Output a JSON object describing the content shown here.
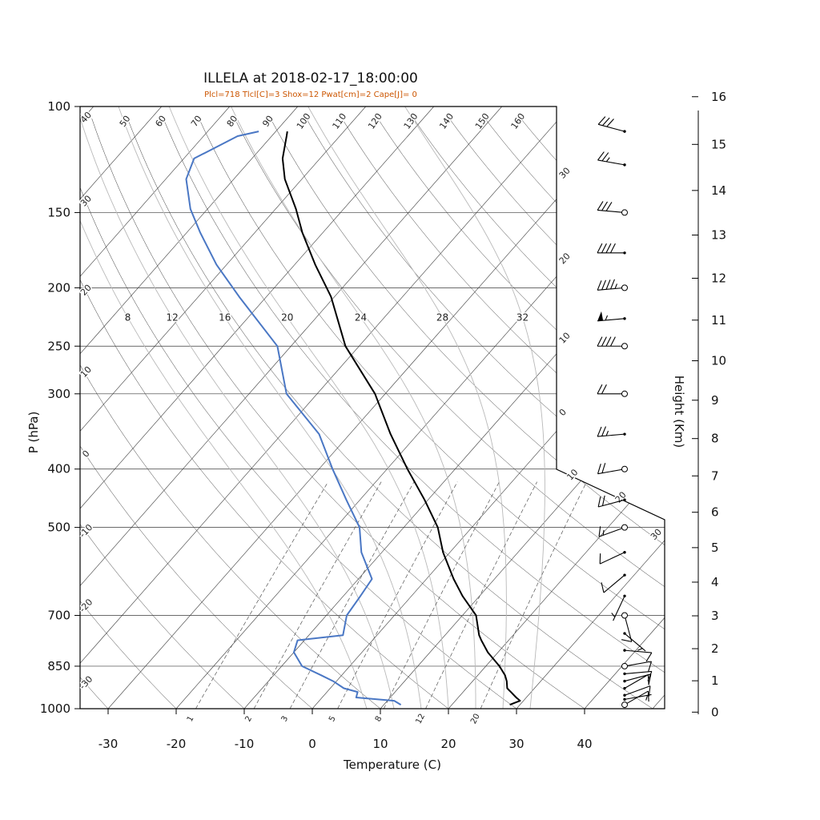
{
  "chart_data": {
    "type": "line",
    "subtype": "skew-t-log-p-sounding",
    "title": "ILLELA at 2018-02-17_18:00:00",
    "station": "ILLELA",
    "valid_time": "2018-02-17_18:00:00",
    "subtitle": "Plcl=718 Tlcl[C]=3 Shox=12 Pwat[cm]=2 Cape[J]= 0",
    "indices": {
      "Plcl": 718,
      "Tlcl_C": 3,
      "Shox": 12,
      "Pwat_cm": 2,
      "Cape_J": 0
    },
    "xlabel": "Temperature (C)",
    "ylabel": "P (hPa)",
    "y2label": "Height (Km)",
    "pressure_ticks": [
      100,
      150,
      200,
      250,
      300,
      400,
      500,
      700,
      850,
      1000
    ],
    "temperature_ticks": [
      -30,
      -20,
      -10,
      0,
      10,
      20,
      30,
      40
    ],
    "height_ticks_km": [
      0,
      1,
      2,
      3,
      4,
      5,
      6,
      7,
      8,
      9,
      10,
      11,
      12,
      13,
      14,
      15,
      16
    ],
    "pressure_range_hpa": [
      100,
      1000
    ],
    "isotherm_step_c": 10,
    "dry_adiabat_values_c": [
      -30,
      -20,
      -10,
      0,
      10,
      20,
      30,
      40,
      50,
      60,
      70,
      80,
      90,
      100,
      110,
      120,
      130,
      140,
      150,
      160
    ],
    "dry_adiabat_top_labels": [
      "50",
      "60",
      "70",
      "80",
      "90",
      "100",
      "110",
      "120",
      "130",
      "140",
      "150",
      "160"
    ],
    "dry_adiabat_left_labels": [
      "40",
      "30",
      "20",
      "10",
      "0",
      "-10",
      "-20",
      "-30"
    ],
    "right_edge_labels": [
      {
        "text": "30",
        "p": 132
      },
      {
        "text": "20",
        "p": 183
      },
      {
        "text": "10",
        "p": 248
      },
      {
        "text": "0",
        "p": 327
      }
    ],
    "lower_right_isotherm_labels": [
      {
        "text": "10",
        "t": 10
      },
      {
        "text": "20",
        "t": 20
      },
      {
        "text": "30",
        "t": 30
      }
    ],
    "moist_adiabat_values_c": [
      8,
      12,
      16,
      20,
      24,
      28,
      32
    ],
    "mixing_ratio_values_gkg": [
      1,
      2,
      3,
      5,
      8,
      12,
      20
    ],
    "sounding": {
      "pressure_hpa": [
        985,
        970,
        958,
        938,
        925,
        900,
        880,
        850,
        806,
        770,
        755,
        700,
        650,
        609,
        550,
        500,
        450,
        400,
        350,
        300,
        250,
        207,
        183,
        162,
        148,
        132,
        122,
        112,
        110
      ],
      "temperature_c": [
        28.5,
        29.5,
        28.5,
        27,
        26,
        25,
        24,
        22,
        18.5,
        16,
        15,
        12,
        7.5,
        4,
        -1,
        -5,
        -10.5,
        -17,
        -24,
        -31.5,
        -42,
        -50.5,
        -57,
        -63,
        -67,
        -72.5,
        -75.5,
        -77.8,
        -78.3
      ],
      "dewpoint_c": [
        12.5,
        11,
        5,
        4.5,
        2,
        -0.5,
        -3,
        -7,
        -10,
        -11,
        -5,
        -7,
        -7.5,
        -8,
        -13,
        -16.5,
        -22,
        -28,
        -34.5,
        -44.5,
        -52,
        -64,
        -71.5,
        -78,
        -82.5,
        -87,
        -88.5,
        -85,
        -82.5
      ]
    },
    "winds": [
      {
        "p": 985,
        "speed_kt": 8,
        "dir_deg": 60,
        "marker": "circle"
      },
      {
        "p": 965,
        "speed_kt": 5,
        "dir_deg": 80,
        "marker": "dot"
      },
      {
        "p": 950,
        "speed_kt": 10,
        "dir_deg": 70,
        "marker": "dot"
      },
      {
        "p": 925,
        "speed_kt": 12,
        "dir_deg": 60,
        "marker": "dot"
      },
      {
        "p": 900,
        "speed_kt": 10,
        "dir_deg": 75,
        "marker": "dot"
      },
      {
        "p": 875,
        "speed_kt": 8,
        "dir_deg": 85,
        "marker": "dot"
      },
      {
        "p": 850,
        "speed_kt": 10,
        "dir_deg": 80,
        "marker": "circle"
      },
      {
        "p": 800,
        "speed_kt": 8,
        "dir_deg": 95,
        "marker": "dot"
      },
      {
        "p": 750,
        "speed_kt": 5,
        "dir_deg": 130,
        "marker": "dot"
      },
      {
        "p": 700,
        "speed_kt": 8,
        "dir_deg": 165,
        "marker": "circle"
      },
      {
        "p": 650,
        "speed_kt": 5,
        "dir_deg": 205,
        "marker": "dot"
      },
      {
        "p": 600,
        "speed_kt": 8,
        "dir_deg": 230,
        "marker": "dot"
      },
      {
        "p": 550,
        "speed_kt": 10,
        "dir_deg": 245,
        "marker": "dot"
      },
      {
        "p": 500,
        "speed_kt": 15,
        "dir_deg": 250,
        "marker": "circle"
      },
      {
        "p": 450,
        "speed_kt": 18,
        "dir_deg": 255,
        "marker": "dot"
      },
      {
        "p": 400,
        "speed_kt": 20,
        "dir_deg": 260,
        "marker": "circle"
      },
      {
        "p": 350,
        "speed_kt": 25,
        "dir_deg": 265,
        "marker": "dot"
      },
      {
        "p": 300,
        "speed_kt": 20,
        "dir_deg": 270,
        "marker": "circle"
      },
      {
        "p": 250,
        "speed_kt": 40,
        "dir_deg": 270,
        "marker": "circle"
      },
      {
        "p": 225,
        "speed_kt": 55,
        "dir_deg": 265,
        "marker": "dot"
      },
      {
        "p": 200,
        "speed_kt": 45,
        "dir_deg": 265,
        "marker": "circle"
      },
      {
        "p": 175,
        "speed_k t": 40,
        "dir_deg": 270,
        "marker": "dot"
      },
      {
        "p": 150,
        "speed_kt": 30,
        "dir_deg": 275,
        "marker": "circle"
      },
      {
        "p": 125,
        "speed_kt": 25,
        "dir_deg": 280,
        "marker": "dot"
      },
      {
        "p": 110,
        "speed_kt": 30,
        "dir_deg": 285,
        "marker": "dot"
      }
    ],
    "colors": {
      "temperature_curve": "#000000",
      "dewpoint_curve": "#4a77c4",
      "subtitle": "#cc5500",
      "moist_adiabat": "#b9b9b9",
      "mixing_ratio": "#555555",
      "grid": "#3a3a3a",
      "border": "#000000"
    }
  }
}
